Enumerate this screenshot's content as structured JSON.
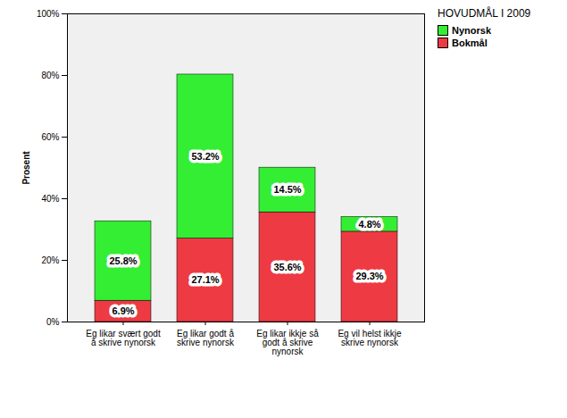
{
  "chart_data": {
    "type": "bar",
    "stacked": true,
    "data_labels": true,
    "grid": false,
    "legend": "right",
    "legend_title": "HOVUDMÅL I 2009",
    "y_label": "Prosent",
    "categories": [
      "Eg likar svært godt å skrive nynorsk",
      "Eg likar godt å skrive nynorsk",
      "Eg likar ikkje så godt å skrive nynorsk",
      "Eg vil helst ikkje skrive nynorsk"
    ],
    "series": [
      {
        "name": "Bokmål",
        "color": "#ee3a43",
        "values": [
          6.9,
          27.1,
          35.6,
          29.3
        ],
        "value_labels": [
          "6.9%",
          "27.1%",
          "35.6%",
          "29.3%"
        ]
      },
      {
        "name": "Nynorsk",
        "color": "#33ee33",
        "values": [
          25.8,
          53.2,
          14.5,
          4.8
        ],
        "value_labels": [
          "25.8%",
          "53.2%",
          "14.5%",
          "4.8%"
        ]
      }
    ],
    "ylim": [
      0,
      100
    ],
    "yticks": [
      {
        "value": 0,
        "label": "0%"
      },
      {
        "value": 20,
        "label": "20%"
      },
      {
        "value": 40,
        "label": "40%"
      },
      {
        "value": 60,
        "label": "60%"
      },
      {
        "value": 80,
        "label": "80%"
      },
      {
        "value": 100,
        "label": "100%"
      }
    ]
  }
}
